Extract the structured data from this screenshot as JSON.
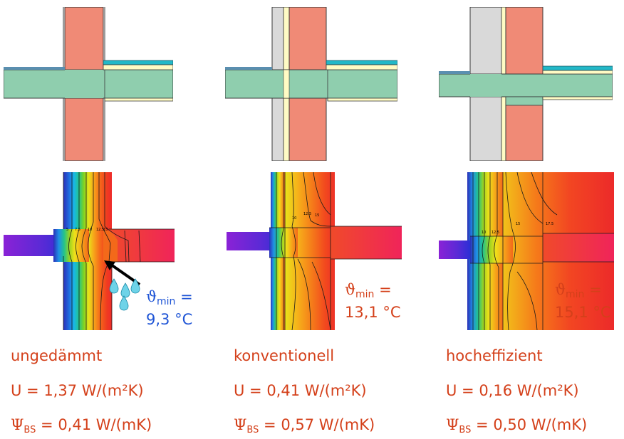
{
  "colors": {
    "masonry": "#f08a76",
    "slab": "#8fceae",
    "insulation": "#fffbc4",
    "screed": "#22b8c8",
    "outline": "#3a3a3a",
    "exterior_insulation": "#d9d9d9",
    "annotation_blue": "#1f55d6",
    "annotation_red": "#d4401a"
  },
  "panels": [
    {
      "name": "ungedaemmt",
      "tmin_label": {
        "symbol": "ϑ",
        "sub": "min",
        "eq": " =",
        "value": "9,3 °C"
      },
      "isotherm_labels": [
        "5",
        "7.5",
        "10",
        "12.5",
        "15"
      ],
      "title": "ungedämmt",
      "u_value": "U = 1,37 W/(m²K)",
      "psi_symbol": "Ψ",
      "psi_sub": "BS",
      "psi_value": " = 0,41 W/(mK)"
    },
    {
      "name": "konventionell",
      "tmin_label": {
        "symbol": "ϑ",
        "sub": "min",
        "eq": " =",
        "value": "13,1 °C"
      },
      "isotherm_labels": [
        "10",
        "12.5",
        "15"
      ],
      "title": "konventionell",
      "u_value": "U = 0,41 W/(m²K)",
      "psi_symbol": "Ψ",
      "psi_sub": "BS",
      "psi_value": " = 0,57 W/(mK)"
    },
    {
      "name": "hocheffizient",
      "tmin_label": {
        "symbol": "ϑ",
        "sub": "min",
        "eq": " =",
        "value": "15,1 °C"
      },
      "isotherm_labels": [
        "10",
        "12.5",
        "15",
        "17.5"
      ],
      "title": "hocheffizient",
      "u_value": "U = 0,16 W/(m²K)",
      "psi_symbol": "Ψ",
      "psi_sub": "BS",
      "psi_value": " = 0,50 W/(mK)"
    }
  ]
}
